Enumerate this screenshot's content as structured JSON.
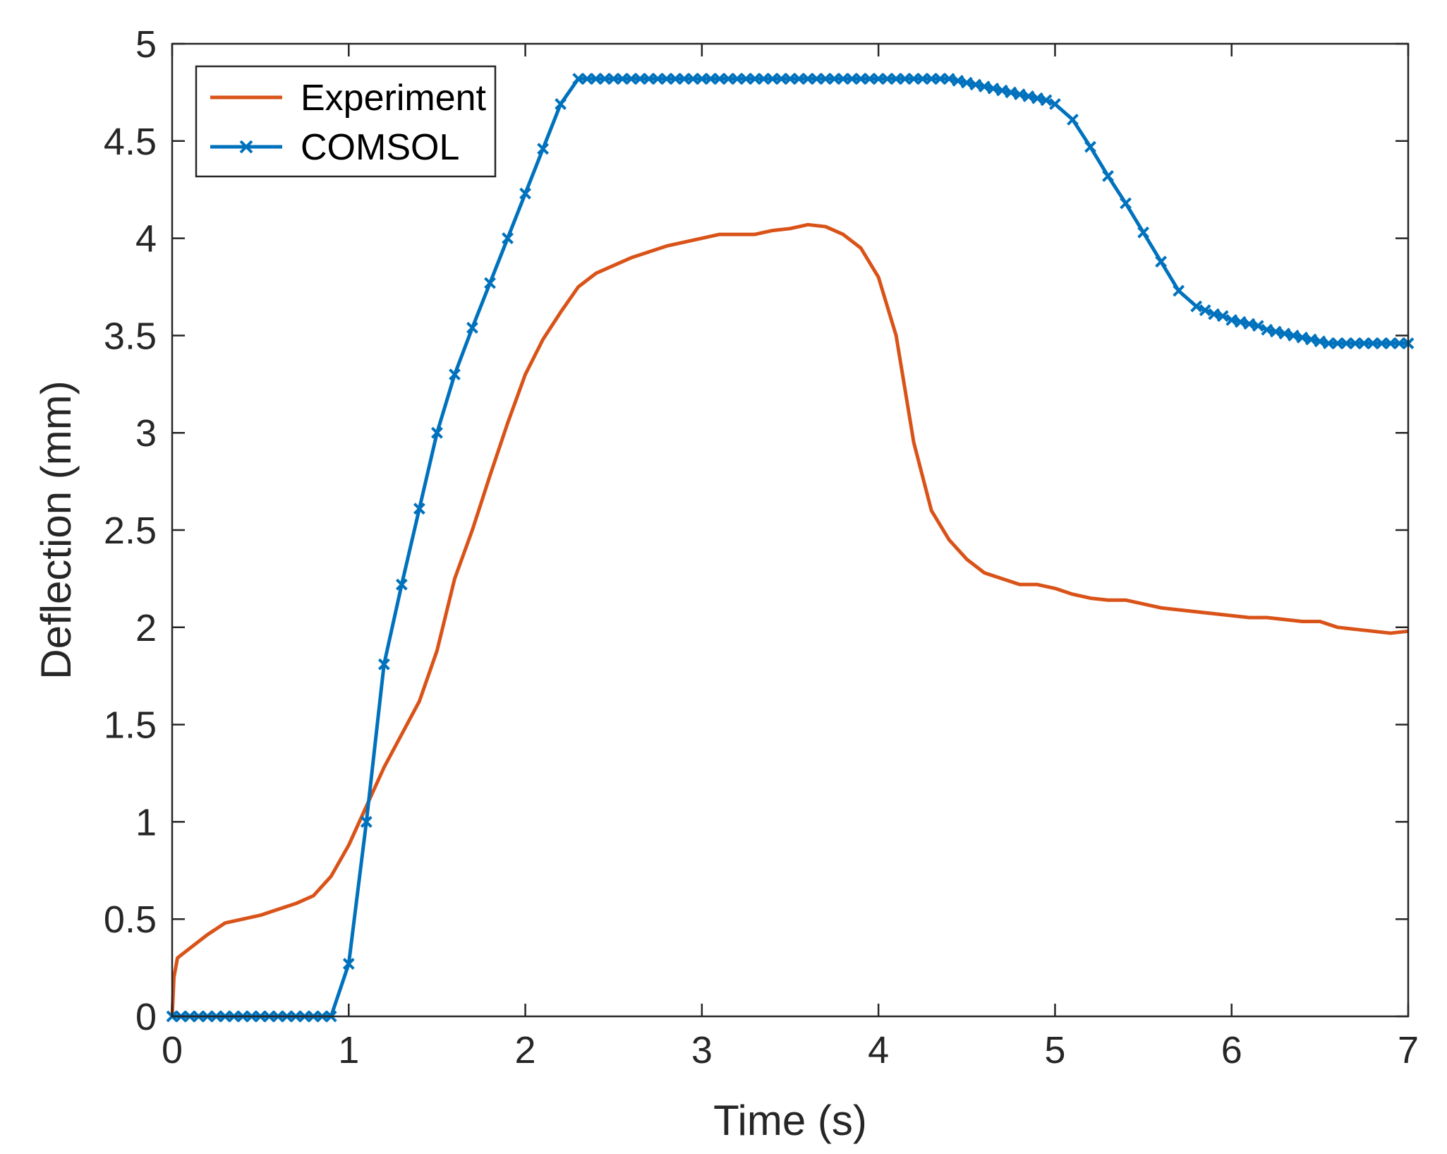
{
  "chart_data": {
    "type": "line",
    "title": "",
    "xlabel": "Time (s)",
    "ylabel": "Deflection (mm)",
    "xlim": [
      0,
      7
    ],
    "ylim": [
      0,
      5
    ],
    "xticks": [
      0,
      1,
      2,
      3,
      4,
      5,
      6,
      7
    ],
    "xtick_labels": [
      "0",
      "1",
      "2",
      "3",
      "4",
      "5",
      "6",
      "7"
    ],
    "yticks": [
      0,
      0.5,
      1,
      1.5,
      2,
      2.5,
      3,
      3.5,
      4,
      4.5,
      5
    ],
    "ytick_labels": [
      "0",
      "0.5",
      "1",
      "1.5",
      "2",
      "2.5",
      "3",
      "3.5",
      "4",
      "4.5",
      "5"
    ],
    "grid": false,
    "box": true,
    "legend_position": "top-left",
    "series": [
      {
        "name": "Experiment",
        "label": "Experiment",
        "color": "#D95319",
        "marker": "none",
        "x": [
          0,
          0.01,
          0.03,
          0.1,
          0.2,
          0.3,
          0.4,
          0.5,
          0.6,
          0.7,
          0.8,
          0.9,
          1.0,
          1.1,
          1.2,
          1.3,
          1.4,
          1.5,
          1.6,
          1.7,
          1.8,
          1.9,
          2.0,
          2.1,
          2.2,
          2.3,
          2.4,
          2.5,
          2.6,
          2.7,
          2.8,
          2.9,
          3.0,
          3.1,
          3.2,
          3.3,
          3.4,
          3.5,
          3.6,
          3.7,
          3.8,
          3.9,
          4.0,
          4.1,
          4.2,
          4.3,
          4.4,
          4.5,
          4.6,
          4.7,
          4.8,
          4.9,
          5.0,
          5.1,
          5.2,
          5.3,
          5.4,
          5.5,
          5.6,
          5.7,
          5.8,
          5.9,
          6.0,
          6.1,
          6.2,
          6.3,
          6.4,
          6.5,
          6.6,
          6.7,
          6.8,
          6.9,
          7.0
        ],
        "values": [
          0.0,
          0.2,
          0.3,
          0.35,
          0.42,
          0.48,
          0.5,
          0.52,
          0.55,
          0.58,
          0.62,
          0.72,
          0.88,
          1.08,
          1.28,
          1.45,
          1.62,
          1.88,
          2.25,
          2.5,
          2.78,
          3.05,
          3.3,
          3.48,
          3.62,
          3.75,
          3.82,
          3.86,
          3.9,
          3.93,
          3.96,
          3.98,
          4.0,
          4.02,
          4.02,
          4.02,
          4.04,
          4.05,
          4.07,
          4.06,
          4.02,
          3.95,
          3.8,
          3.5,
          2.95,
          2.6,
          2.45,
          2.35,
          2.28,
          2.25,
          2.22,
          2.22,
          2.2,
          2.17,
          2.15,
          2.14,
          2.14,
          2.12,
          2.1,
          2.09,
          2.08,
          2.07,
          2.06,
          2.05,
          2.05,
          2.04,
          2.03,
          2.03,
          2.0,
          1.99,
          1.98,
          1.97,
          1.98
        ]
      },
      {
        "name": "COMSOL",
        "label": "COMSOL",
        "color": "#0072BD",
        "marker": "x",
        "x": [
          0,
          0.05,
          0.1,
          0.15,
          0.2,
          0.25,
          0.3,
          0.35,
          0.4,
          0.45,
          0.5,
          0.55,
          0.6,
          0.65,
          0.7,
          0.75,
          0.8,
          0.85,
          0.9,
          1.0,
          1.1,
          1.2,
          1.3,
          1.4,
          1.5,
          1.6,
          1.7,
          1.8,
          1.9,
          2.0,
          2.1,
          2.2,
          2.3,
          2.35,
          2.4,
          2.45,
          2.5,
          2.55,
          2.6,
          2.65,
          2.7,
          2.75,
          2.8,
          2.85,
          2.9,
          2.95,
          3.0,
          3.05,
          3.1,
          3.15,
          3.2,
          3.25,
          3.3,
          3.35,
          3.4,
          3.45,
          3.5,
          3.55,
          3.6,
          3.65,
          3.7,
          3.75,
          3.8,
          3.85,
          3.9,
          3.95,
          4.0,
          4.05,
          4.1,
          4.15,
          4.2,
          4.25,
          4.3,
          4.35,
          4.4,
          4.45,
          4.5,
          4.55,
          4.6,
          4.65,
          4.7,
          4.75,
          4.8,
          4.85,
          4.9,
          4.95,
          5.0,
          5.1,
          5.2,
          5.3,
          5.4,
          5.5,
          5.6,
          5.7,
          5.8,
          5.85,
          5.9,
          5.95,
          6.0,
          6.05,
          6.1,
          6.15,
          6.2,
          6.25,
          6.3,
          6.35,
          6.4,
          6.45,
          6.5,
          6.55,
          6.6,
          6.65,
          6.7,
          6.75,
          6.8,
          6.85,
          6.9,
          6.95,
          7.0
        ],
        "values": [
          0,
          0,
          0,
          0,
          0,
          0,
          0,
          0,
          0,
          0,
          0,
          0,
          0,
          0,
          0,
          0,
          0,
          0,
          0,
          0.27,
          1.0,
          1.81,
          2.22,
          2.61,
          3.0,
          3.3,
          3.54,
          3.77,
          4.0,
          4.23,
          4.46,
          4.69,
          4.82,
          4.82,
          4.82,
          4.82,
          4.82,
          4.82,
          4.82,
          4.82,
          4.82,
          4.82,
          4.82,
          4.82,
          4.82,
          4.82,
          4.82,
          4.82,
          4.82,
          4.82,
          4.82,
          4.82,
          4.82,
          4.82,
          4.82,
          4.82,
          4.82,
          4.82,
          4.82,
          4.82,
          4.82,
          4.82,
          4.82,
          4.82,
          4.82,
          4.82,
          4.82,
          4.82,
          4.82,
          4.82,
          4.82,
          4.82,
          4.82,
          4.82,
          4.82,
          4.81,
          4.8,
          4.79,
          4.78,
          4.77,
          4.76,
          4.75,
          4.74,
          4.73,
          4.72,
          4.71,
          4.69,
          4.61,
          4.47,
          4.32,
          4.18,
          4.03,
          3.88,
          3.73,
          3.65,
          3.63,
          3.61,
          3.6,
          3.58,
          3.57,
          3.56,
          3.55,
          3.53,
          3.52,
          3.51,
          3.5,
          3.49,
          3.48,
          3.47,
          3.46,
          3.46,
          3.46,
          3.46,
          3.46,
          3.46,
          3.46,
          3.46,
          3.46,
          3.46
        ]
      }
    ]
  }
}
